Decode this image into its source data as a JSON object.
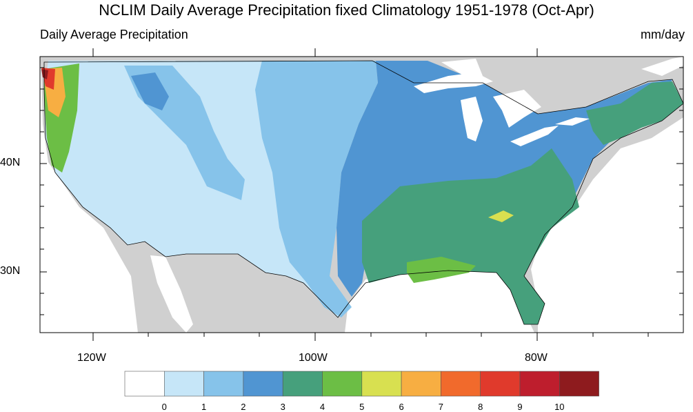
{
  "title": "NCLIM Daily Average Precipitation fixed Climatology 1951-1978 (Oct-Apr)",
  "subtitle_left": "Daily Average Precipitation",
  "subtitle_right": "mm/day",
  "lat_labels": [
    "40N",
    "30N"
  ],
  "lon_labels": [
    "120W",
    "100W",
    "80W"
  ],
  "colorbar": {
    "colors": [
      "#ffffff",
      "#c6e6f8",
      "#86c3ea",
      "#5095d2",
      "#46a07c",
      "#6cbe45",
      "#d8e050",
      "#f7ae42",
      "#f16a2c",
      "#e03a2c",
      "#be1e2d",
      "#8e1b1e"
    ],
    "labels": [
      "0",
      "1",
      "2",
      "3",
      "4",
      "5",
      "6",
      "7",
      "8",
      "9",
      "10"
    ]
  },
  "map_colors": {
    "land_outside": "#d0d0d0",
    "water": "#ffffff",
    "zone_lt1": "#c6e6f8",
    "zone_1_2": "#86c3ea",
    "zone_2_3": "#5095d2",
    "zone_3_4": "#46a07c",
    "zone_4_5": "#6cbe45",
    "zone_5_6": "#d8e050",
    "zone_high": "#e03a2c"
  }
}
